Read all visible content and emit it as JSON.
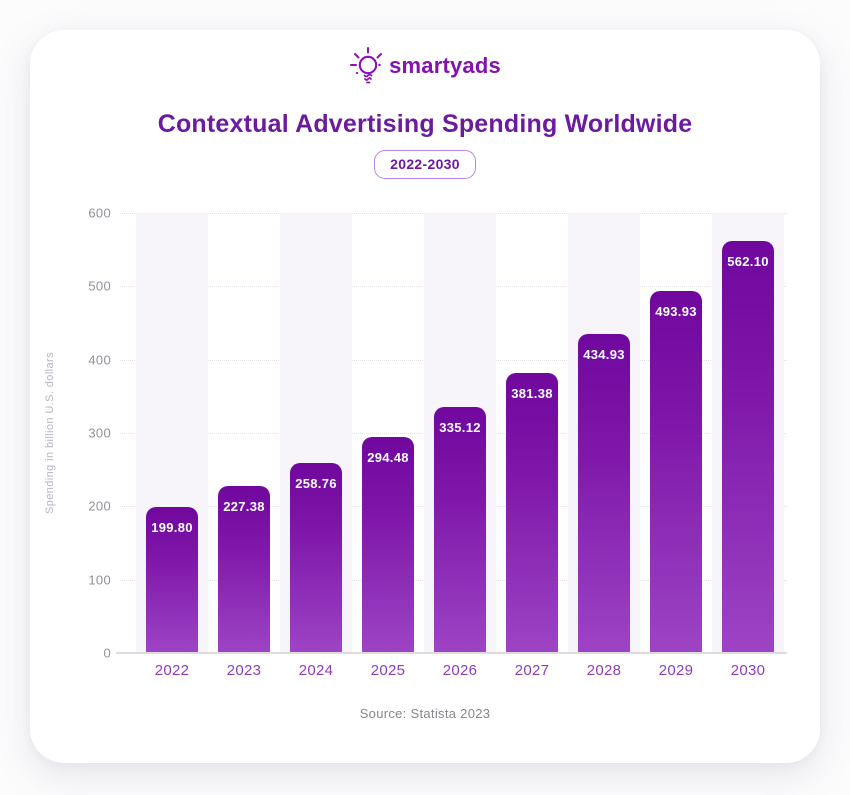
{
  "brand": {
    "name": "smartyads",
    "logo_icon": "lightbulb-icon",
    "logo_color": "#8412AE"
  },
  "header": {
    "title": "Contextual Advertising Spending Worldwide",
    "period_badge": "2022-2030"
  },
  "footer": {
    "source": "Source: Statista 2023"
  },
  "colors": {
    "title": "#6D1B9E",
    "badge_border": "#BA85DE",
    "bar_gradient_top": "#70089E",
    "bar_gradient_bottom": "#9D44C4",
    "bar_value_text": "#FFFFFF",
    "x_tick": "#8E3CB8",
    "y_tick": "#8F9299",
    "axis_label": "#B5B8BF",
    "gridline": "#E4E2E8",
    "column_stripe": "#F7F5F9",
    "source_text": "#85878C"
  },
  "chart_data": {
    "type": "bar",
    "title": "Contextual Advertising Spending Worldwide",
    "subtitle": "2022-2030",
    "categories": [
      "2022",
      "2023",
      "2024",
      "2025",
      "2026",
      "2027",
      "2028",
      "2029",
      "2030"
    ],
    "values": [
      199.8,
      227.38,
      258.76,
      294.48,
      335.12,
      381.38,
      434.93,
      493.93,
      562.1
    ],
    "value_labels": [
      "199.80",
      "227.38",
      "258.76",
      "294.48",
      "335.12",
      "381.38",
      "434.93",
      "493.93",
      "562.10"
    ],
    "xlabel": "",
    "ylabel": "Spending in billion U.S. dollars",
    "ylim": [
      0,
      600
    ],
    "yticks": [
      0,
      100,
      200,
      300,
      400,
      500,
      600
    ],
    "grid": "horizontal-dotted",
    "legend": "none",
    "bar_style": "vertical gradient purple, rounded top corners, value label inside top",
    "background_stripes": "alternating light columns behind odd bars",
    "source": "Source: Statista 2023"
  }
}
